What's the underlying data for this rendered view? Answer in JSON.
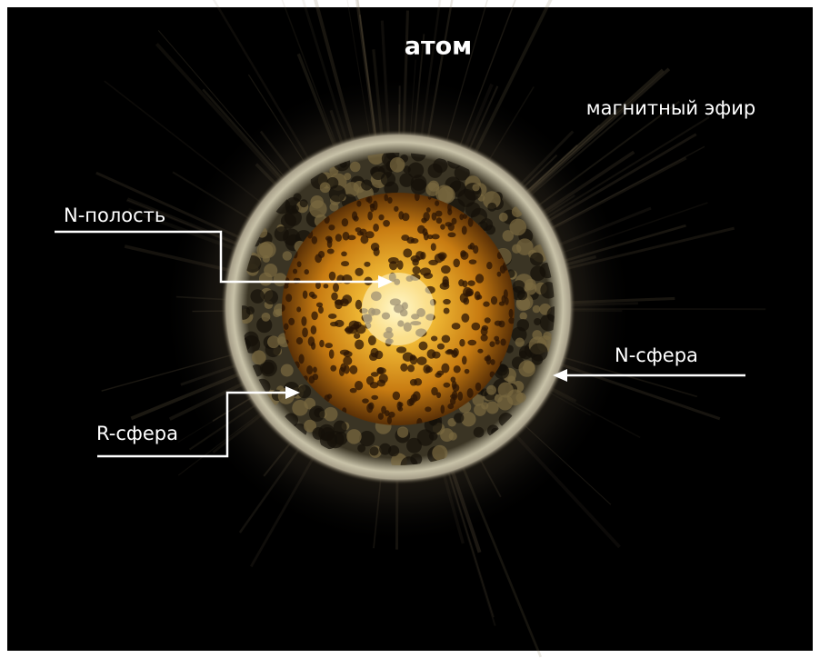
{
  "title": "атом",
  "ether_label": "магнитный эфир",
  "labels": {
    "n_cavity": "N-полость",
    "n_sphere": "N-сфера",
    "r_sphere": "R-сфера"
  }
}
